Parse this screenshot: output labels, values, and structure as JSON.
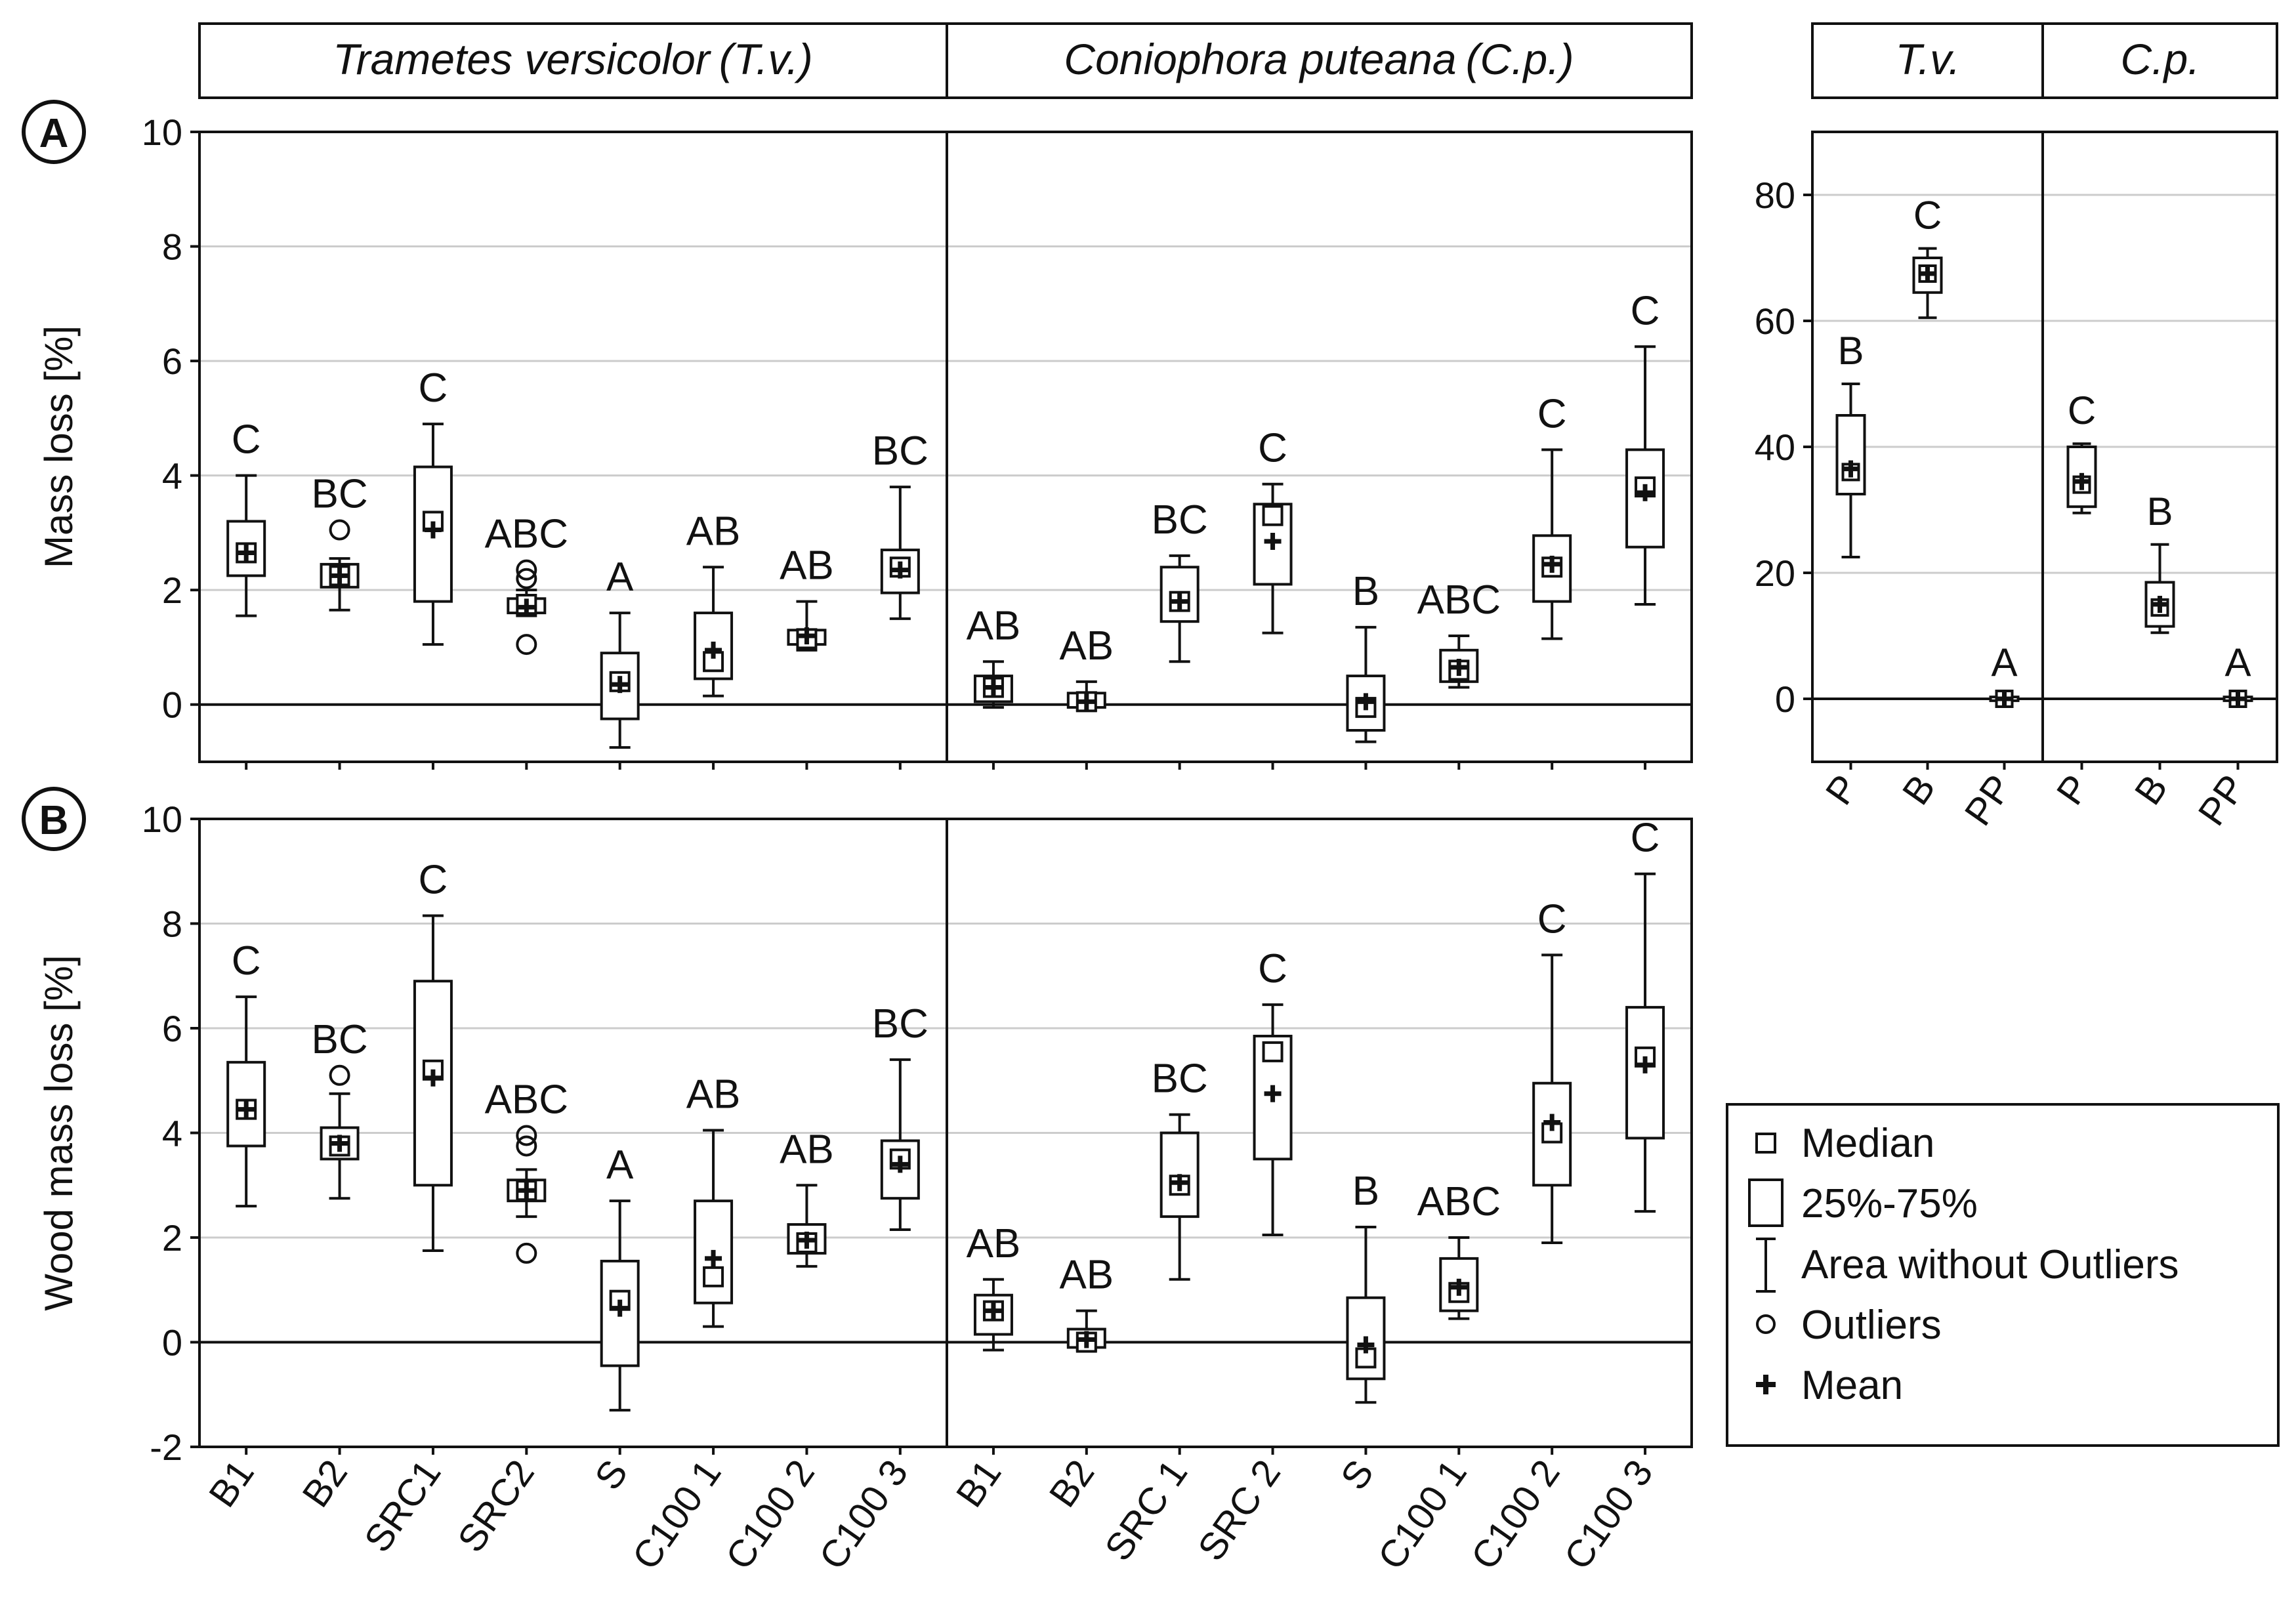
{
  "panel_labels": {
    "a": "A",
    "b": "B"
  },
  "headers": {
    "tv_full": "Trametes versicolor",
    "tv_abbr": "(T.v.)",
    "cp_full": "Coniophora puteana",
    "cp_abbr": "(C.p.)",
    "tv_short": "T.v.",
    "cp_short": "C.p."
  },
  "legend": {
    "median": "Median",
    "iqr": "25%-75%",
    "whisker": "Area without Outliers",
    "outliers": "Outliers",
    "mean": "Mean"
  },
  "colors": {
    "ink": "#111111",
    "grid": "#cccccc",
    "background": "#ffffff"
  },
  "chart_data": [
    {
      "id": "A",
      "type": "box",
      "ylabel": "Mass loss [%]",
      "ylim": [
        -1,
        10
      ],
      "yticks": [
        0,
        2,
        4,
        6,
        8,
        10
      ],
      "grid": true,
      "groups": [
        {
          "name": "Trametes versicolor (T.v.)",
          "boxes": [
            {
              "label": "B1",
              "letter": "C",
              "whisker_low": 1.55,
              "q1": 2.25,
              "median": 2.65,
              "q3": 3.2,
              "whisker_high": 4.0,
              "mean": 2.65,
              "outliers": []
            },
            {
              "label": "B2",
              "letter": "BC",
              "whisker_low": 1.65,
              "q1": 2.05,
              "median": 2.25,
              "q3": 2.45,
              "whisker_high": 2.55,
              "mean": 2.25,
              "outliers": [
                3.05
              ]
            },
            {
              "label": "SRC1",
              "letter": "C",
              "whisker_low": 1.05,
              "q1": 1.8,
              "median": 3.2,
              "q3": 4.15,
              "whisker_high": 4.9,
              "mean": 3.05,
              "outliers": []
            },
            {
              "label": "SRC2",
              "letter": "ABC",
              "whisker_low": 1.55,
              "q1": 1.6,
              "median": 1.75,
              "q3": 1.85,
              "whisker_high": 2.0,
              "mean": 1.7,
              "outliers": [
                2.35,
                2.2,
                1.05
              ]
            },
            {
              "label": "S",
              "letter": "A",
              "whisker_low": -0.75,
              "q1": -0.25,
              "median": 0.4,
              "q3": 0.9,
              "whisker_high": 1.6,
              "mean": 0.35,
              "outliers": []
            },
            {
              "label": "C100 1",
              "letter": "AB",
              "whisker_low": 0.15,
              "q1": 0.45,
              "median": 0.75,
              "q3": 1.6,
              "whisker_high": 2.4,
              "mean": 0.95,
              "outliers": []
            },
            {
              "label": "C100 2",
              "letter": "AB",
              "whisker_low": 0.95,
              "q1": 1.05,
              "median": 1.15,
              "q3": 1.3,
              "whisker_high": 1.8,
              "mean": 1.2,
              "outliers": []
            },
            {
              "label": "C100 3",
              "letter": "BC",
              "whisker_low": 1.5,
              "q1": 1.95,
              "median": 2.4,
              "q3": 2.7,
              "whisker_high": 3.8,
              "mean": 2.35,
              "outliers": []
            }
          ]
        },
        {
          "name": "Coniophora puteana (C.p.)",
          "boxes": [
            {
              "label": "B1",
              "letter": "AB",
              "whisker_low": -0.05,
              "q1": 0.05,
              "median": 0.3,
              "q3": 0.5,
              "whisker_high": 0.75,
              "mean": 0.3,
              "outliers": []
            },
            {
              "label": "B2",
              "letter": "AB",
              "whisker_low": -0.1,
              "q1": -0.05,
              "median": 0.05,
              "q3": 0.2,
              "whisker_high": 0.4,
              "mean": 0.05,
              "outliers": []
            },
            {
              "label": "SRC 1",
              "letter": "BC",
              "whisker_low": 0.75,
              "q1": 1.45,
              "median": 1.8,
              "q3": 2.4,
              "whisker_high": 2.6,
              "mean": 1.8,
              "outliers": []
            },
            {
              "label": "SRC 2",
              "letter": "C",
              "whisker_low": 1.25,
              "q1": 2.1,
              "median": 3.3,
              "q3": 3.5,
              "whisker_high": 3.85,
              "mean": 2.85,
              "outliers": []
            },
            {
              "label": "S",
              "letter": "B",
              "whisker_low": -0.65,
              "q1": -0.45,
              "median": -0.05,
              "q3": 0.5,
              "whisker_high": 1.35,
              "mean": 0.05,
              "outliers": []
            },
            {
              "label": "C100 1",
              "letter": "ABC",
              "whisker_low": 0.3,
              "q1": 0.4,
              "median": 0.6,
              "q3": 0.95,
              "whisker_high": 1.2,
              "mean": 0.65,
              "outliers": []
            },
            {
              "label": "C100 2",
              "letter": "C",
              "whisker_low": 1.15,
              "q1": 1.8,
              "median": 2.4,
              "q3": 2.95,
              "whisker_high": 4.45,
              "mean": 2.45,
              "outliers": []
            },
            {
              "label": "C100 3",
              "letter": "C",
              "whisker_low": 1.75,
              "q1": 2.75,
              "median": 3.8,
              "q3": 4.45,
              "whisker_high": 6.25,
              "mean": 3.7,
              "outliers": []
            }
          ]
        }
      ]
    },
    {
      "id": "B",
      "type": "box",
      "ylabel": "Wood mass loss [%]",
      "ylim": [
        -2,
        10
      ],
      "yticks": [
        -2,
        0,
        2,
        4,
        6,
        8,
        10
      ],
      "grid": true,
      "groups": [
        {
          "name": "Trametes versicolor (T.v.)",
          "boxes": [
            {
              "label": "B1",
              "letter": "C",
              "whisker_low": 2.6,
              "q1": 3.75,
              "median": 4.45,
              "q3": 5.35,
              "whisker_high": 6.6,
              "mean": 4.45,
              "outliers": []
            },
            {
              "label": "B2",
              "letter": "BC",
              "whisker_low": 2.75,
              "q1": 3.5,
              "median": 3.75,
              "q3": 4.1,
              "whisker_high": 4.75,
              "mean": 3.8,
              "outliers": [
                5.1
              ]
            },
            {
              "label": "SRC1",
              "letter": "C",
              "whisker_low": 1.75,
              "q1": 3.0,
              "median": 5.2,
              "q3": 6.9,
              "whisker_high": 8.15,
              "mean": 5.05,
              "outliers": []
            },
            {
              "label": "SRC2",
              "letter": "ABC",
              "whisker_low": 2.4,
              "q1": 2.7,
              "median": 2.9,
              "q3": 3.1,
              "whisker_high": 3.3,
              "mean": 2.9,
              "outliers": [
                3.95,
                3.75,
                1.7
              ]
            },
            {
              "label": "S",
              "letter": "A",
              "whisker_low": -1.3,
              "q1": -0.45,
              "median": 0.8,
              "q3": 1.55,
              "whisker_high": 2.7,
              "mean": 0.65,
              "outliers": []
            },
            {
              "label": "C100 1",
              "letter": "AB",
              "whisker_low": 0.3,
              "q1": 0.75,
              "median": 1.25,
              "q3": 2.7,
              "whisker_high": 4.05,
              "mean": 1.6,
              "outliers": []
            },
            {
              "label": "C100 2",
              "letter": "AB",
              "whisker_low": 1.45,
              "q1": 1.7,
              "median": 1.9,
              "q3": 2.25,
              "whisker_high": 3.0,
              "mean": 1.95,
              "outliers": []
            },
            {
              "label": "C100 3",
              "letter": "BC",
              "whisker_low": 2.15,
              "q1": 2.75,
              "median": 3.5,
              "q3": 3.85,
              "whisker_high": 5.4,
              "mean": 3.4,
              "outliers": []
            }
          ]
        },
        {
          "name": "Coniophora puteana (C.p.)",
          "boxes": [
            {
              "label": "B1",
              "letter": "AB",
              "whisker_low": -0.15,
              "q1": 0.15,
              "median": 0.6,
              "q3": 0.9,
              "whisker_high": 1.2,
              "mean": 0.6,
              "outliers": []
            },
            {
              "label": "B2",
              "letter": "AB",
              "whisker_low": -0.15,
              "q1": -0.1,
              "median": 0.0,
              "q3": 0.25,
              "whisker_high": 0.6,
              "mean": 0.05,
              "outliers": []
            },
            {
              "label": "SRC 1",
              "letter": "BC",
              "whisker_low": 1.2,
              "q1": 2.4,
              "median": 3.0,
              "q3": 4.0,
              "whisker_high": 4.35,
              "mean": 3.05,
              "outliers": []
            },
            {
              "label": "SRC 2",
              "letter": "C",
              "whisker_low": 2.05,
              "q1": 3.5,
              "median": 5.55,
              "q3": 5.85,
              "whisker_high": 6.45,
              "mean": 4.75,
              "outliers": []
            },
            {
              "label": "S",
              "letter": "B",
              "whisker_low": -1.15,
              "q1": -0.7,
              "median": -0.3,
              "q3": 0.85,
              "whisker_high": 2.2,
              "mean": -0.05,
              "outliers": []
            },
            {
              "label": "C100 1",
              "letter": "ABC",
              "whisker_low": 0.45,
              "q1": 0.6,
              "median": 0.95,
              "q3": 1.6,
              "whisker_high": 2.0,
              "mean": 1.05,
              "outliers": []
            },
            {
              "label": "C100 2",
              "letter": "C",
              "whisker_low": 1.9,
              "q1": 3.0,
              "median": 4.0,
              "q3": 4.95,
              "whisker_high": 7.4,
              "mean": 4.2,
              "outliers": []
            },
            {
              "label": "C100 3",
              "letter": "C",
              "whisker_low": 2.5,
              "q1": 3.9,
              "median": 5.45,
              "q3": 6.4,
              "whisker_high": 8.95,
              "mean": 5.3,
              "outliers": []
            }
          ]
        }
      ]
    },
    {
      "id": "A-inset",
      "type": "box",
      "ylabel": "",
      "ylim": [
        -10,
        90
      ],
      "yticks": [
        0,
        20,
        40,
        60,
        80
      ],
      "grid": true,
      "groups": [
        {
          "name": "T.v.",
          "boxes": [
            {
              "label": "P",
              "letter": "B",
              "whisker_low": 22.5,
              "q1": 32.5,
              "median": 36.0,
              "q3": 45.0,
              "whisker_high": 50.0,
              "mean": 36.5,
              "outliers": []
            },
            {
              "label": "B",
              "letter": "C",
              "whisker_low": 60.5,
              "q1": 64.5,
              "median": 67.5,
              "q3": 70.0,
              "whisker_high": 71.5,
              "mean": 67.5,
              "outliers": []
            },
            {
              "label": "PP",
              "letter": "A",
              "whisker_low": -0.5,
              "q1": -0.3,
              "median": 0.0,
              "q3": 0.3,
              "whisker_high": 0.5,
              "mean": 0.0,
              "outliers": []
            }
          ]
        },
        {
          "name": "C.p.",
          "boxes": [
            {
              "label": "P",
              "letter": "C",
              "whisker_low": 29.5,
              "q1": 30.5,
              "median": 34.0,
              "q3": 40.0,
              "whisker_high": 40.5,
              "mean": 34.5,
              "outliers": []
            },
            {
              "label": "B",
              "letter": "B",
              "whisker_low": 10.5,
              "q1": 11.5,
              "median": 14.5,
              "q3": 18.5,
              "whisker_high": 24.5,
              "mean": 15.0,
              "outliers": []
            },
            {
              "label": "PP",
              "letter": "A",
              "whisker_low": -0.5,
              "q1": -0.3,
              "median": 0.0,
              "q3": 0.3,
              "whisker_high": 0.5,
              "mean": 0.0,
              "outliers": []
            }
          ]
        }
      ]
    }
  ]
}
